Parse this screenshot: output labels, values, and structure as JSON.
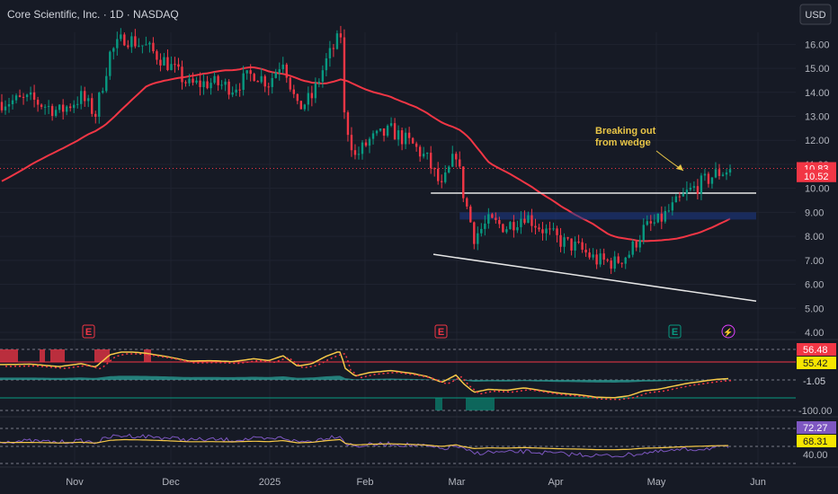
{
  "header": {
    "title": "Core Scientific, Inc. · 1D · NASDAQ",
    "currency_button": "USD"
  },
  "chart_data": {
    "type": "candlestick",
    "symbol": "Core Scientific, Inc.",
    "interval": "1D",
    "exchange": "NASDAQ",
    "x_labels": [
      "Nov",
      "Dec",
      "2025",
      "Feb",
      "Mar",
      "Apr",
      "May",
      "Jun"
    ],
    "price_axis": {
      "ticks": [
        "16.00",
        "15.00",
        "14.00",
        "13.00",
        "12.00",
        "11.00",
        "10.00",
        "9.00",
        "8.00",
        "7.00",
        "6.00",
        "5.00",
        "4.00"
      ],
      "range": [
        4.0,
        16.5
      ]
    },
    "price_badges": [
      {
        "label": "10.83",
        "color": "#f23645"
      },
      {
        "label": "10.52",
        "color": "#f23645"
      }
    ],
    "moving_average": {
      "color": "#f23645"
    },
    "resistance_level": 9.8,
    "support_zone": [
      8.7,
      9.0
    ],
    "annotation": {
      "line1": "Breaking out",
      "line2": "from wedge"
    },
    "earnings_markers": [
      "E",
      "E",
      "E"
    ],
    "dividend_marker": "⚡",
    "oscillator": {
      "badges": [
        {
          "label": "56.48",
          "bg": "#f23645",
          "fg": "#ffffff"
        },
        {
          "label": "55.42",
          "bg": "#f7e600",
          "fg": "#131722"
        },
        {
          "label": "-1.05",
          "bg": "#161a25",
          "fg": "#d1d4dc"
        }
      ],
      "ticks": [
        "-100.00"
      ],
      "bands": {
        "upper_color": "#f23645",
        "lower_color": "#089981"
      }
    },
    "rsi": {
      "badges": [
        {
          "label": "72.27",
          "bg": "#7e57c2",
          "fg": "#ffffff"
        },
        {
          "label": "68.31",
          "bg": "#f7e600",
          "fg": "#131722"
        }
      ],
      "ticks": [
        "40.00"
      ]
    }
  }
}
